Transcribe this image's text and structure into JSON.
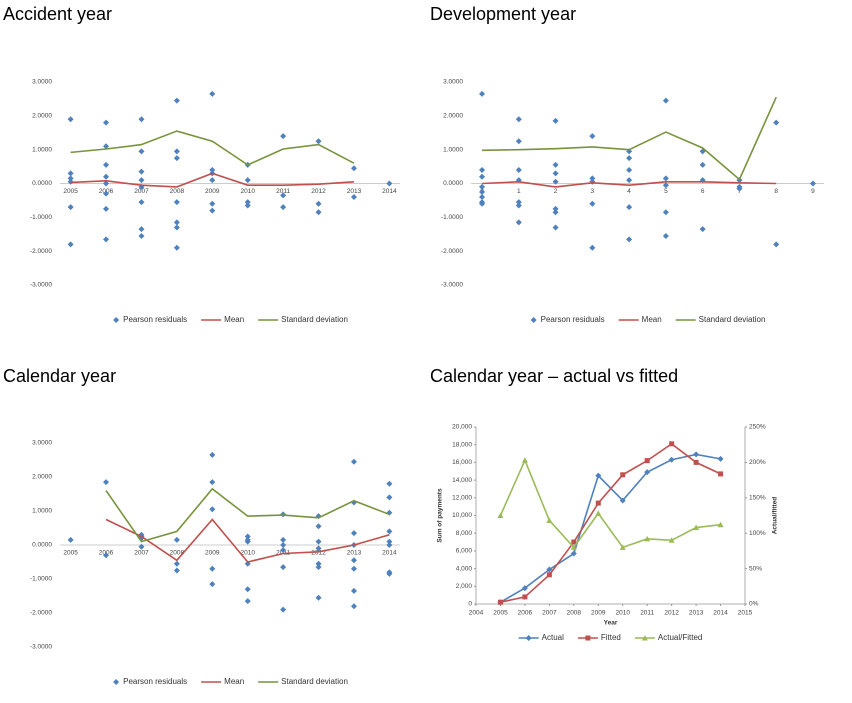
{
  "chart_data": [
    {
      "type": "scatter",
      "title": "Accident year",
      "xlim": [
        2004.7,
        2014.3
      ],
      "xticks": [
        2005,
        2006,
        2007,
        2008,
        2009,
        2010,
        2011,
        2012,
        2013,
        2014
      ],
      "ylim": [
        -3,
        3
      ],
      "yticks": [
        {
          "value": 3,
          "label": "3.0000"
        },
        {
          "value": 2,
          "label": "2.0000"
        },
        {
          "value": 1,
          "label": "1.0000"
        },
        {
          "value": 0,
          "label": "0.0000"
        },
        {
          "value": -1,
          "label": "-1.0000"
        },
        {
          "value": -2,
          "label": "-2.0000"
        },
        {
          "value": -3,
          "label": "-3.0000"
        }
      ],
      "series": [
        {
          "name": "Pearson residuals",
          "color": "#4f81bd",
          "marker": "diamond",
          "line": false,
          "x": [
            2005,
            2005,
            2005,
            2005,
            2005,
            2005,
            2006,
            2006,
            2006,
            2006,
            2006,
            2006,
            2006,
            2006,
            2007,
            2007,
            2007,
            2007,
            2007,
            2007,
            2007,
            2007,
            2008,
            2008,
            2008,
            2008,
            2008,
            2008,
            2008,
            2009,
            2009,
            2009,
            2009,
            2009,
            2009,
            2010,
            2010,
            2010,
            2010,
            2011,
            2011,
            2011,
            2012,
            2012,
            2012,
            2013,
            2013,
            2014
          ],
          "values": [
            1.9,
            0.3,
            0.15,
            0.05,
            -0.7,
            -1.8,
            1.8,
            1.1,
            0.55,
            0.2,
            0,
            -0.3,
            -0.75,
            -1.65,
            1.9,
            0.95,
            0.35,
            0.1,
            -0.1,
            -0.55,
            -1.35,
            -1.55,
            2.45,
            0.95,
            0.75,
            -0.55,
            -1.15,
            -1.3,
            -1.9,
            2.65,
            0.4,
            0.3,
            0.1,
            -0.6,
            -0.8,
            0.55,
            0.1,
            -0.55,
            -0.65,
            1.4,
            -0.35,
            -0.7,
            1.25,
            -0.6,
            -0.85,
            0.45,
            -0.4,
            0
          ]
        },
        {
          "name": "Mean",
          "color": "#c0504d",
          "marker": "none",
          "line": true,
          "x": [
            2005,
            2006,
            2007,
            2008,
            2009,
            2010,
            2011,
            2012,
            2013
          ],
          "values": [
            0.03,
            0.08,
            -0.05,
            -0.1,
            0.3,
            -0.05,
            -0.05,
            -0.02,
            0.05
          ]
        },
        {
          "name": "Standard deviation",
          "color": "#77933c",
          "marker": "none",
          "line": true,
          "x": [
            2005,
            2006,
            2007,
            2008,
            2009,
            2010,
            2011,
            2012,
            2013
          ],
          "values": [
            0.92,
            1.02,
            1.15,
            1.55,
            1.25,
            0.55,
            1.02,
            1.15,
            0.6
          ]
        }
      ]
    },
    {
      "type": "scatter",
      "title": "Development year",
      "xlim": [
        -0.3,
        9.3
      ],
      "xticks": [
        0,
        1,
        2,
        3,
        4,
        5,
        6,
        7,
        8,
        9
      ],
      "ylim": [
        -3,
        3
      ],
      "yticks": [
        {
          "value": 3,
          "label": "3.0000"
        },
        {
          "value": 2,
          "label": "2.0000"
        },
        {
          "value": 1,
          "label": "1.0000"
        },
        {
          "value": 0,
          "label": "0.0000"
        },
        {
          "value": -1,
          "label": "-1.0000"
        },
        {
          "value": -2,
          "label": "-2.0000"
        },
        {
          "value": -3,
          "label": "-3.0000"
        }
      ],
      "series": [
        {
          "name": "Pearson residuals",
          "color": "#4f81bd",
          "marker": "diamond",
          "line": false,
          "x": [
            0,
            0,
            0,
            0,
            0,
            0,
            0,
            0,
            1,
            1,
            1,
            1,
            1,
            1,
            1,
            2,
            2,
            2,
            2,
            2,
            2,
            2,
            3,
            3,
            3,
            3,
            3,
            4,
            4,
            4,
            4,
            4,
            4,
            5,
            5,
            5,
            5,
            5,
            6,
            6,
            6,
            6,
            7,
            7,
            7,
            8,
            8,
            9
          ],
          "values": [
            2.65,
            0.4,
            0.2,
            -0.1,
            -0.25,
            -0.4,
            -0.55,
            -0.6,
            1.9,
            1.25,
            0.4,
            0.1,
            -0.55,
            -0.65,
            -1.15,
            1.85,
            0.55,
            0.3,
            0.05,
            -0.75,
            -0.85,
            -1.3,
            1.4,
            0.15,
            0.05,
            -0.6,
            -1.9,
            0.95,
            0.75,
            0.4,
            0.1,
            -0.7,
            -1.65,
            2.45,
            0.15,
            -0.05,
            -0.85,
            -1.55,
            0.95,
            0.55,
            0.1,
            -1.35,
            0.1,
            -0.1,
            -0.15,
            1.8,
            -1.8,
            0
          ]
        },
        {
          "name": "Mean",
          "color": "#c0504d",
          "marker": "none",
          "line": true,
          "x": [
            0,
            1,
            2,
            3,
            4,
            5,
            6,
            7,
            8
          ],
          "values": [
            0,
            0.05,
            -0.1,
            0.02,
            -0.05,
            0.05,
            0.05,
            0.02,
            0
          ]
        },
        {
          "name": "Standard deviation",
          "color": "#77933c",
          "marker": "none",
          "line": true,
          "x": [
            0,
            1,
            2,
            3,
            4,
            5,
            6,
            7,
            8
          ],
          "values": [
            0.98,
            1.0,
            1.03,
            1.08,
            1.0,
            1.52,
            1.05,
            0.12,
            2.55
          ]
        }
      ]
    },
    {
      "type": "scatter",
      "title": "Calendar year",
      "xlim": [
        2004.7,
        2014.3
      ],
      "xticks": [
        2005,
        2006,
        2007,
        2008,
        2009,
        2010,
        2011,
        2012,
        2013,
        2014
      ],
      "ylim": [
        -3,
        3
      ],
      "yticks": [
        {
          "value": 3,
          "label": "3.0000"
        },
        {
          "value": 2,
          "label": "2.0000"
        },
        {
          "value": 1,
          "label": "1.0000"
        },
        {
          "value": 0,
          "label": "0.0000"
        },
        {
          "value": -1,
          "label": "-1.0000"
        },
        {
          "value": -2,
          "label": "-2.0000"
        },
        {
          "value": -3,
          "label": "-3.0000"
        }
      ],
      "series": [
        {
          "name": "Pearson residuals",
          "color": "#4f81bd",
          "marker": "diamond",
          "line": false,
          "x": [
            2005,
            2006,
            2006,
            2007,
            2007,
            2007,
            2007,
            2008,
            2008,
            2008,
            2009,
            2009,
            2009,
            2009,
            2009,
            2010,
            2010,
            2010,
            2010,
            2010,
            2010,
            2011,
            2011,
            2011,
            2011,
            2011,
            2011,
            2012,
            2012,
            2012,
            2012,
            2012,
            2012,
            2012,
            2013,
            2013,
            2013,
            2013,
            2013,
            2013,
            2013,
            2013,
            2014,
            2014,
            2014,
            2014,
            2014,
            2014,
            2014,
            2014
          ],
          "values": [
            0.15,
            1.85,
            -0.3,
            0.3,
            0.25,
            0.2,
            -0.05,
            0.15,
            -0.55,
            -0.75,
            2.65,
            1.85,
            1.05,
            -0.7,
            -1.15,
            0.25,
            0.15,
            0.1,
            -0.55,
            -1.3,
            -1.65,
            0.9,
            0.15,
            0,
            -0.15,
            -0.65,
            -1.9,
            0.85,
            0.55,
            0.1,
            -0.1,
            -0.55,
            -0.65,
            -1.55,
            2.45,
            1.25,
            0.35,
            0,
            -0.45,
            -0.7,
            -1.35,
            -1.8,
            1.8,
            1.4,
            0.95,
            0.4,
            0.1,
            0,
            -0.8,
            -0.85
          ]
        },
        {
          "name": "Mean",
          "color": "#c0504d",
          "marker": "none",
          "line": true,
          "x": [
            2006,
            2007,
            2008,
            2009,
            2010,
            2011,
            2012,
            2013,
            2014
          ],
          "values": [
            0.75,
            0.25,
            -0.45,
            0.75,
            -0.5,
            -0.25,
            -0.2,
            0,
            0.3
          ]
        },
        {
          "name": "Standard deviation",
          "color": "#77933c",
          "marker": "none",
          "line": true,
          "x": [
            2006,
            2007,
            2008,
            2009,
            2010,
            2011,
            2012,
            2013,
            2014
          ],
          "values": [
            1.6,
            0.1,
            0.4,
            1.65,
            0.85,
            0.88,
            0.8,
            1.3,
            0.9
          ]
        }
      ]
    },
    {
      "type": "line",
      "title": "Calendar year – actual vs fitted",
      "x_label": "Year",
      "y_label": "Sum of payments",
      "y2_label": "Actual/fitted",
      "xlim": [
        2004,
        2015
      ],
      "xticks": [
        2004,
        2005,
        2006,
        2007,
        2008,
        2009,
        2010,
        2011,
        2012,
        2013,
        2014,
        2015
      ],
      "ylim": [
        0,
        20000
      ],
      "yticks": [
        0,
        {
          "value": 2000,
          "label": "2,000"
        },
        {
          "value": 4000,
          "label": "4,000"
        },
        {
          "value": 6000,
          "label": "6,000"
        },
        {
          "value": 8000,
          "label": "8,000"
        },
        {
          "value": 10000,
          "label": "10,000"
        },
        {
          "value": 12000,
          "label": "12,000"
        },
        {
          "value": 14000,
          "label": "14,000"
        },
        {
          "value": 16000,
          "label": "16,000"
        },
        {
          "value": 18000,
          "label": "18,000"
        },
        {
          "value": 20000,
          "label": "20,000"
        }
      ],
      "y2lim": [
        0,
        250
      ],
      "y2ticks": [
        {
          "value": 0,
          "label": "0%"
        },
        {
          "value": 50,
          "label": "50%"
        },
        {
          "value": 100,
          "label": "100%"
        },
        {
          "value": 150,
          "label": "150%"
        },
        {
          "value": 200,
          "label": "200%"
        },
        {
          "value": 250,
          "label": "250%"
        }
      ],
      "series": [
        {
          "name": "Actual",
          "color": "#4f81bd",
          "marker": "diamond",
          "line": true,
          "x": [
            2005,
            2006,
            2007,
            2008,
            2009,
            2010,
            2011,
            2012,
            2013,
            2014
          ],
          "values": [
            200,
            1800,
            3900,
            5700,
            14500,
            11700,
            14900,
            16300,
            16900,
            16400
          ]
        },
        {
          "name": "Fitted",
          "color": "#c0504d",
          "marker": "square",
          "line": true,
          "x": [
            2005,
            2006,
            2007,
            2008,
            2009,
            2010,
            2011,
            2012,
            2013,
            2014
          ],
          "values": [
            200,
            800,
            3300,
            7000,
            11400,
            14600,
            16200,
            18100,
            16000,
            14700
          ]
        },
        {
          "name": "Actual/Fitted",
          "color": "#9bbb59",
          "marker": "triangle",
          "line": true,
          "axis": "y2",
          "x": [
            2005,
            2006,
            2007,
            2008,
            2009,
            2010,
            2011,
            2012,
            2013,
            2014
          ],
          "values": [
            125,
            203,
            118,
            80,
            128,
            80,
            92,
            90,
            108,
            112
          ]
        }
      ]
    }
  ]
}
